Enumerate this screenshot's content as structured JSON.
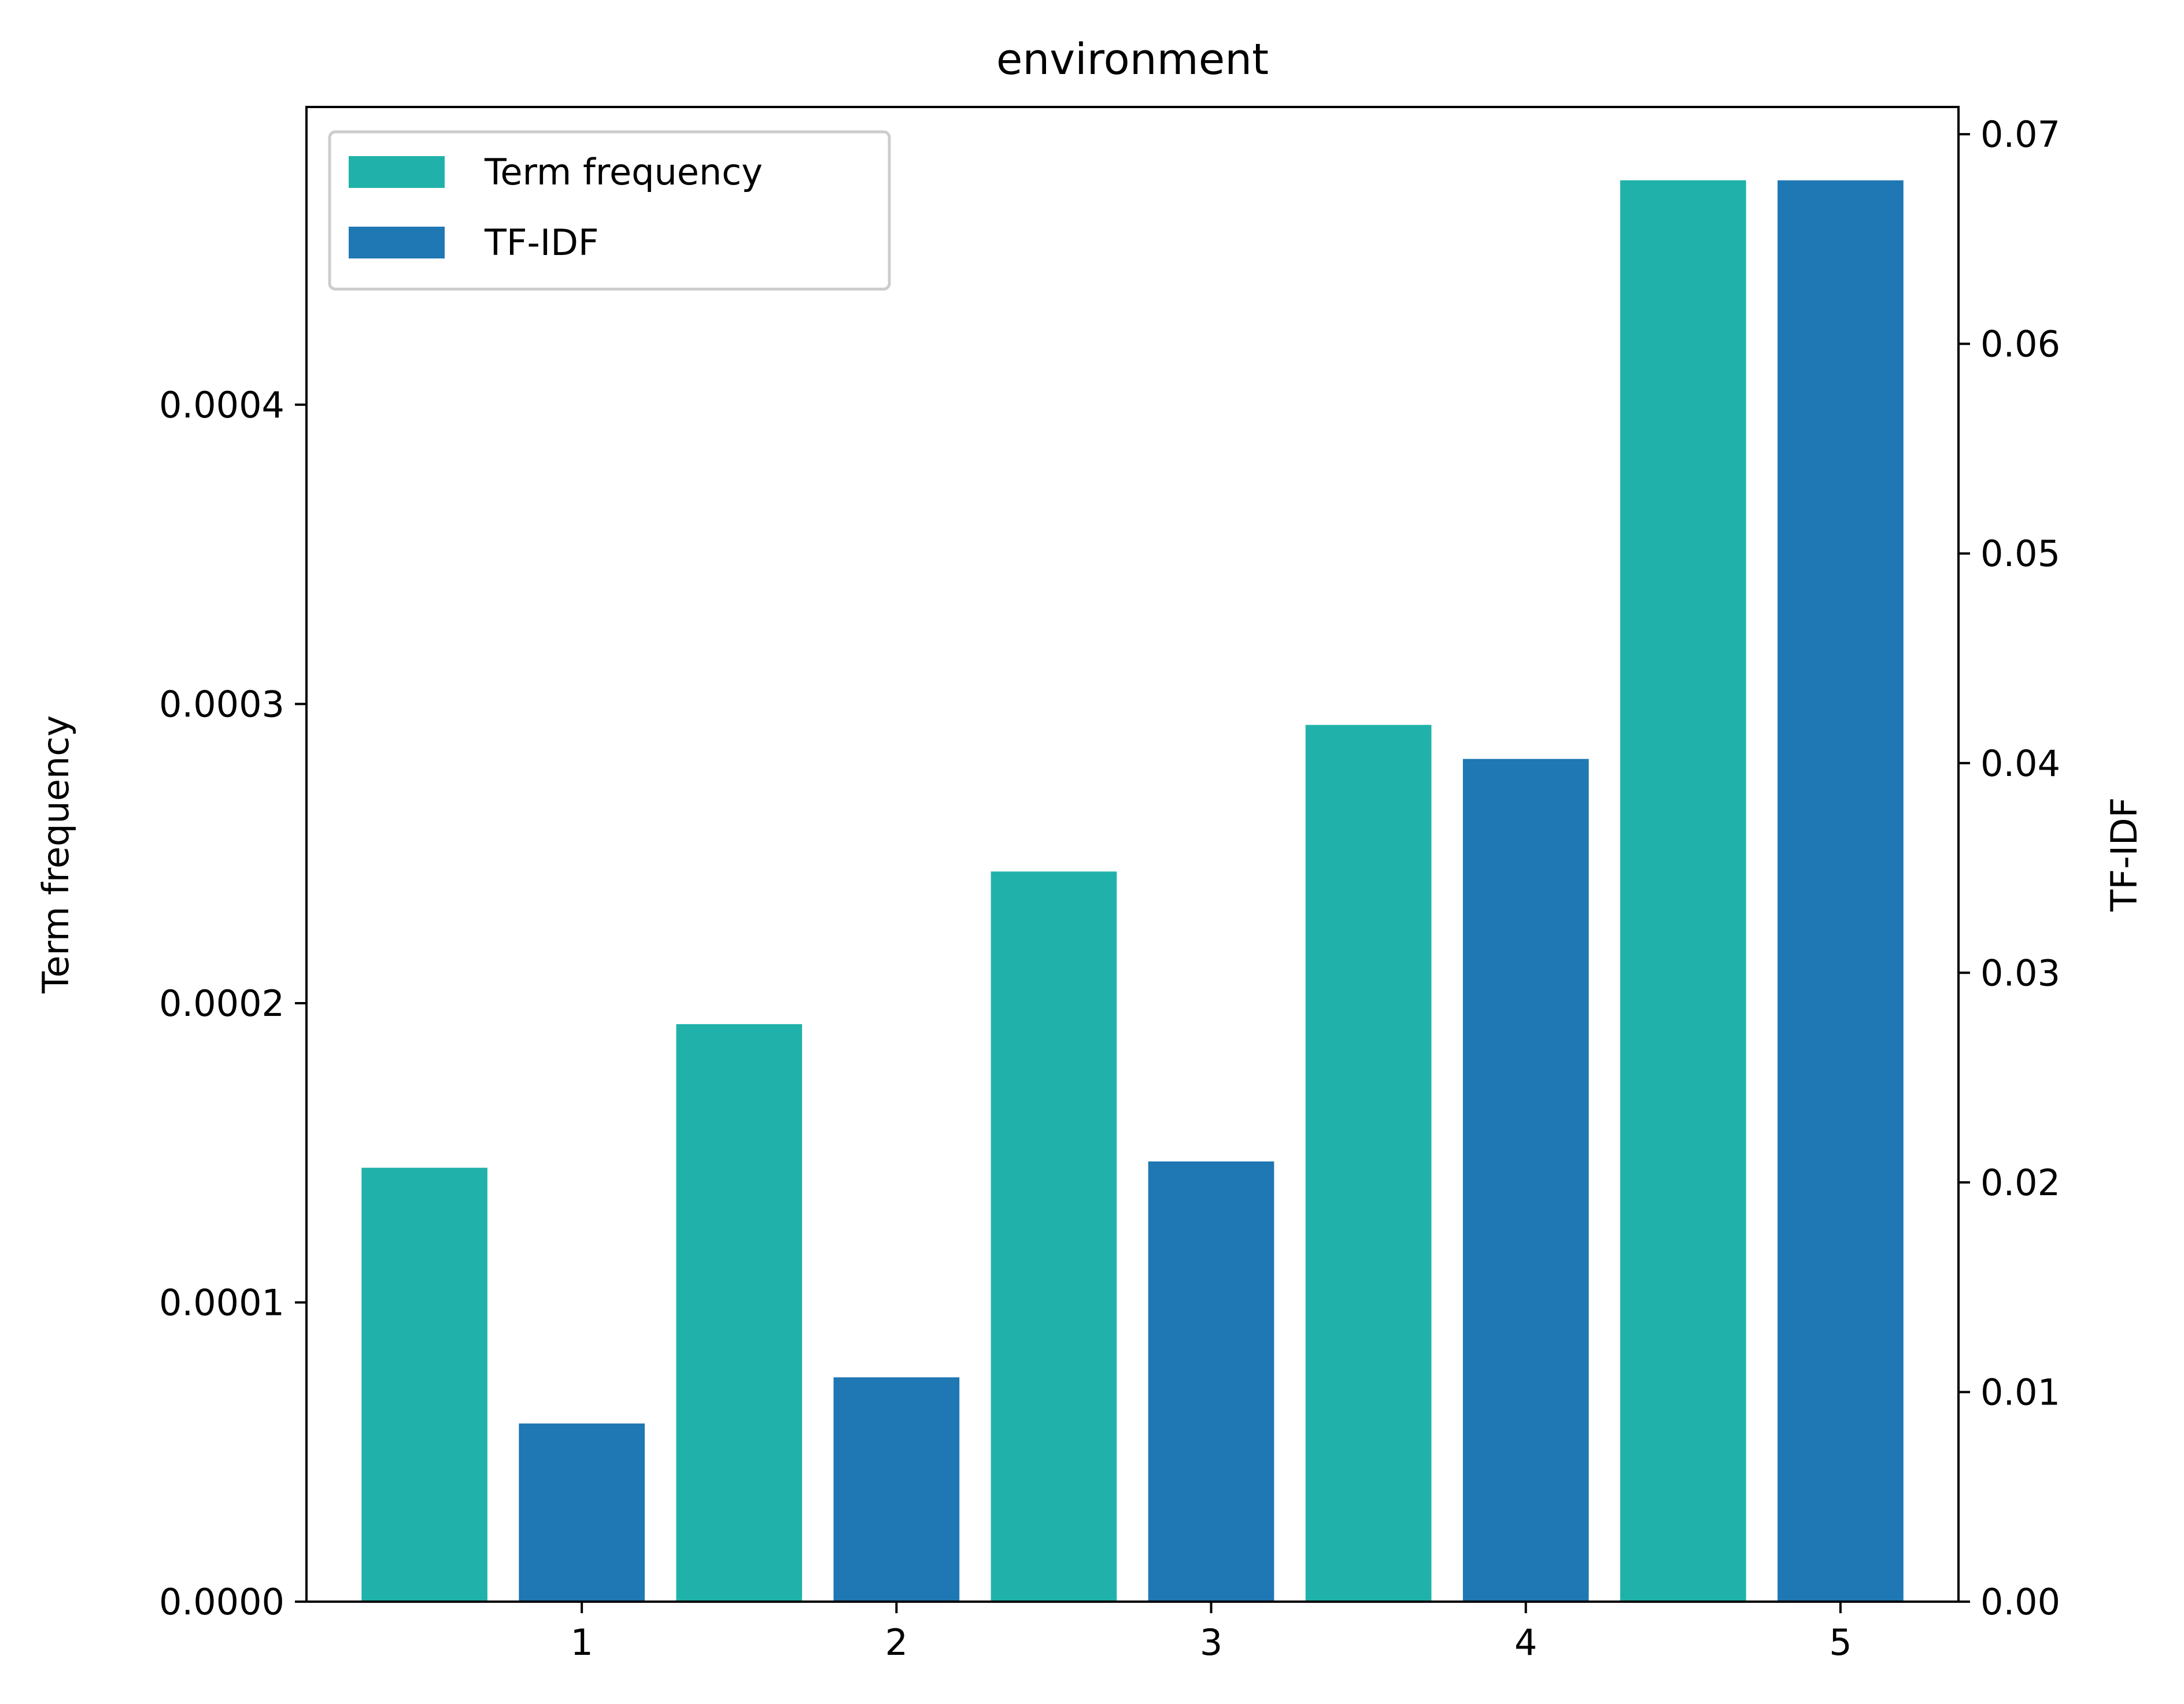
{
  "chart_data": {
    "type": "bar",
    "title": "environment",
    "categories": [
      "1",
      "2",
      "3",
      "4",
      "5"
    ],
    "series": [
      {
        "name": "Term frequency",
        "axis": "left",
        "color": "#20b2aa",
        "values": [
          0.000145,
          0.000193,
          0.000244,
          0.000293,
          0.000475
        ]
      },
      {
        "name": "TF-IDF",
        "axis": "right",
        "color": "#1f77b4",
        "values": [
          0.0085,
          0.0107,
          0.021,
          0.0402,
          0.0678
        ]
      }
    ],
    "y_left": {
      "label": "Term frequency",
      "ylim": [
        0,
        0.0004995
      ],
      "ticks": [
        0,
        0.0001,
        0.0002,
        0.0003,
        0.0004
      ],
      "tick_labels": [
        "0.0000",
        "0.0001",
        "0.0002",
        "0.0003",
        "0.0004"
      ]
    },
    "y_right": {
      "label": "TF-IDF",
      "ylim": [
        0,
        0.0713
      ],
      "ticks": [
        0,
        0.01,
        0.02,
        0.03,
        0.04,
        0.05,
        0.06,
        0.07
      ],
      "tick_labels": [
        "0.00",
        "0.01",
        "0.02",
        "0.03",
        "0.04",
        "0.05",
        "0.06",
        "0.07"
      ]
    },
    "grid": false,
    "legend": {
      "position": "upper-left"
    }
  }
}
